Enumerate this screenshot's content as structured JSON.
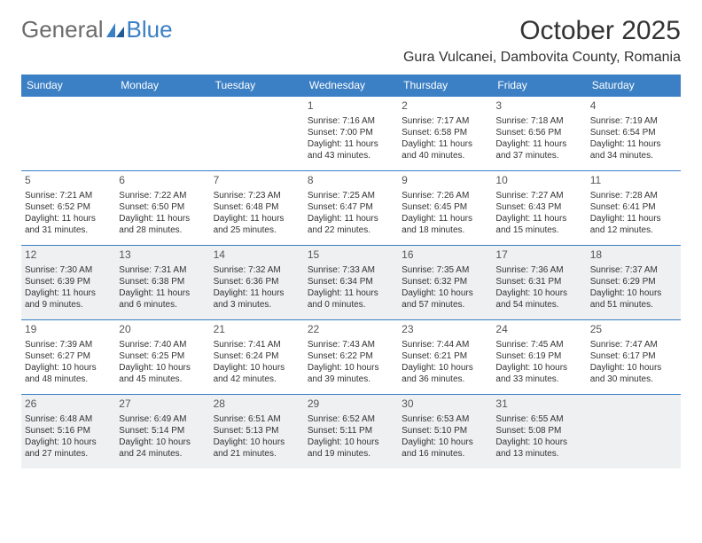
{
  "logo": {
    "general": "General",
    "blue": "Blue"
  },
  "title": "October 2025",
  "location": "Gura Vulcanei, Dambovita County, Romania",
  "colors": {
    "header_bg": "#3b7fc4",
    "header_text": "#ffffff",
    "border": "#3b7fc4",
    "shaded_bg": "#eef0f2",
    "text": "#333333",
    "logo_gray": "#6b6b6b",
    "logo_blue": "#3b7fc4"
  },
  "day_headers": [
    "Sunday",
    "Monday",
    "Tuesday",
    "Wednesday",
    "Thursday",
    "Friday",
    "Saturday"
  ],
  "weeks": [
    [
      {
        "day": "",
        "sunrise": "",
        "sunset": "",
        "daylight": ""
      },
      {
        "day": "",
        "sunrise": "",
        "sunset": "",
        "daylight": ""
      },
      {
        "day": "",
        "sunrise": "",
        "sunset": "",
        "daylight": ""
      },
      {
        "day": "1",
        "sunrise": "Sunrise: 7:16 AM",
        "sunset": "Sunset: 7:00 PM",
        "daylight": "Daylight: 11 hours and 43 minutes."
      },
      {
        "day": "2",
        "sunrise": "Sunrise: 7:17 AM",
        "sunset": "Sunset: 6:58 PM",
        "daylight": "Daylight: 11 hours and 40 minutes."
      },
      {
        "day": "3",
        "sunrise": "Sunrise: 7:18 AM",
        "sunset": "Sunset: 6:56 PM",
        "daylight": "Daylight: 11 hours and 37 minutes."
      },
      {
        "day": "4",
        "sunrise": "Sunrise: 7:19 AM",
        "sunset": "Sunset: 6:54 PM",
        "daylight": "Daylight: 11 hours and 34 minutes."
      }
    ],
    [
      {
        "day": "5",
        "sunrise": "Sunrise: 7:21 AM",
        "sunset": "Sunset: 6:52 PM",
        "daylight": "Daylight: 11 hours and 31 minutes."
      },
      {
        "day": "6",
        "sunrise": "Sunrise: 7:22 AM",
        "sunset": "Sunset: 6:50 PM",
        "daylight": "Daylight: 11 hours and 28 minutes."
      },
      {
        "day": "7",
        "sunrise": "Sunrise: 7:23 AM",
        "sunset": "Sunset: 6:48 PM",
        "daylight": "Daylight: 11 hours and 25 minutes."
      },
      {
        "day": "8",
        "sunrise": "Sunrise: 7:25 AM",
        "sunset": "Sunset: 6:47 PM",
        "daylight": "Daylight: 11 hours and 22 minutes."
      },
      {
        "day": "9",
        "sunrise": "Sunrise: 7:26 AM",
        "sunset": "Sunset: 6:45 PM",
        "daylight": "Daylight: 11 hours and 18 minutes."
      },
      {
        "day": "10",
        "sunrise": "Sunrise: 7:27 AM",
        "sunset": "Sunset: 6:43 PM",
        "daylight": "Daylight: 11 hours and 15 minutes."
      },
      {
        "day": "11",
        "sunrise": "Sunrise: 7:28 AM",
        "sunset": "Sunset: 6:41 PM",
        "daylight": "Daylight: 11 hours and 12 minutes."
      }
    ],
    [
      {
        "day": "12",
        "sunrise": "Sunrise: 7:30 AM",
        "sunset": "Sunset: 6:39 PM",
        "daylight": "Daylight: 11 hours and 9 minutes."
      },
      {
        "day": "13",
        "sunrise": "Sunrise: 7:31 AM",
        "sunset": "Sunset: 6:38 PM",
        "daylight": "Daylight: 11 hours and 6 minutes."
      },
      {
        "day": "14",
        "sunrise": "Sunrise: 7:32 AM",
        "sunset": "Sunset: 6:36 PM",
        "daylight": "Daylight: 11 hours and 3 minutes."
      },
      {
        "day": "15",
        "sunrise": "Sunrise: 7:33 AM",
        "sunset": "Sunset: 6:34 PM",
        "daylight": "Daylight: 11 hours and 0 minutes."
      },
      {
        "day": "16",
        "sunrise": "Sunrise: 7:35 AM",
        "sunset": "Sunset: 6:32 PM",
        "daylight": "Daylight: 10 hours and 57 minutes."
      },
      {
        "day": "17",
        "sunrise": "Sunrise: 7:36 AM",
        "sunset": "Sunset: 6:31 PM",
        "daylight": "Daylight: 10 hours and 54 minutes."
      },
      {
        "day": "18",
        "sunrise": "Sunrise: 7:37 AM",
        "sunset": "Sunset: 6:29 PM",
        "daylight": "Daylight: 10 hours and 51 minutes."
      }
    ],
    [
      {
        "day": "19",
        "sunrise": "Sunrise: 7:39 AM",
        "sunset": "Sunset: 6:27 PM",
        "daylight": "Daylight: 10 hours and 48 minutes."
      },
      {
        "day": "20",
        "sunrise": "Sunrise: 7:40 AM",
        "sunset": "Sunset: 6:25 PM",
        "daylight": "Daylight: 10 hours and 45 minutes."
      },
      {
        "day": "21",
        "sunrise": "Sunrise: 7:41 AM",
        "sunset": "Sunset: 6:24 PM",
        "daylight": "Daylight: 10 hours and 42 minutes."
      },
      {
        "day": "22",
        "sunrise": "Sunrise: 7:43 AM",
        "sunset": "Sunset: 6:22 PM",
        "daylight": "Daylight: 10 hours and 39 minutes."
      },
      {
        "day": "23",
        "sunrise": "Sunrise: 7:44 AM",
        "sunset": "Sunset: 6:21 PM",
        "daylight": "Daylight: 10 hours and 36 minutes."
      },
      {
        "day": "24",
        "sunrise": "Sunrise: 7:45 AM",
        "sunset": "Sunset: 6:19 PM",
        "daylight": "Daylight: 10 hours and 33 minutes."
      },
      {
        "day": "25",
        "sunrise": "Sunrise: 7:47 AM",
        "sunset": "Sunset: 6:17 PM",
        "daylight": "Daylight: 10 hours and 30 minutes."
      }
    ],
    [
      {
        "day": "26",
        "sunrise": "Sunrise: 6:48 AM",
        "sunset": "Sunset: 5:16 PM",
        "daylight": "Daylight: 10 hours and 27 minutes."
      },
      {
        "day": "27",
        "sunrise": "Sunrise: 6:49 AM",
        "sunset": "Sunset: 5:14 PM",
        "daylight": "Daylight: 10 hours and 24 minutes."
      },
      {
        "day": "28",
        "sunrise": "Sunrise: 6:51 AM",
        "sunset": "Sunset: 5:13 PM",
        "daylight": "Daylight: 10 hours and 21 minutes."
      },
      {
        "day": "29",
        "sunrise": "Sunrise: 6:52 AM",
        "sunset": "Sunset: 5:11 PM",
        "daylight": "Daylight: 10 hours and 19 minutes."
      },
      {
        "day": "30",
        "sunrise": "Sunrise: 6:53 AM",
        "sunset": "Sunset: 5:10 PM",
        "daylight": "Daylight: 10 hours and 16 minutes."
      },
      {
        "day": "31",
        "sunrise": "Sunrise: 6:55 AM",
        "sunset": "Sunset: 5:08 PM",
        "daylight": "Daylight: 10 hours and 13 minutes."
      },
      {
        "day": "",
        "sunrise": "",
        "sunset": "",
        "daylight": ""
      }
    ]
  ],
  "shaded_rows": [
    2,
    4
  ]
}
